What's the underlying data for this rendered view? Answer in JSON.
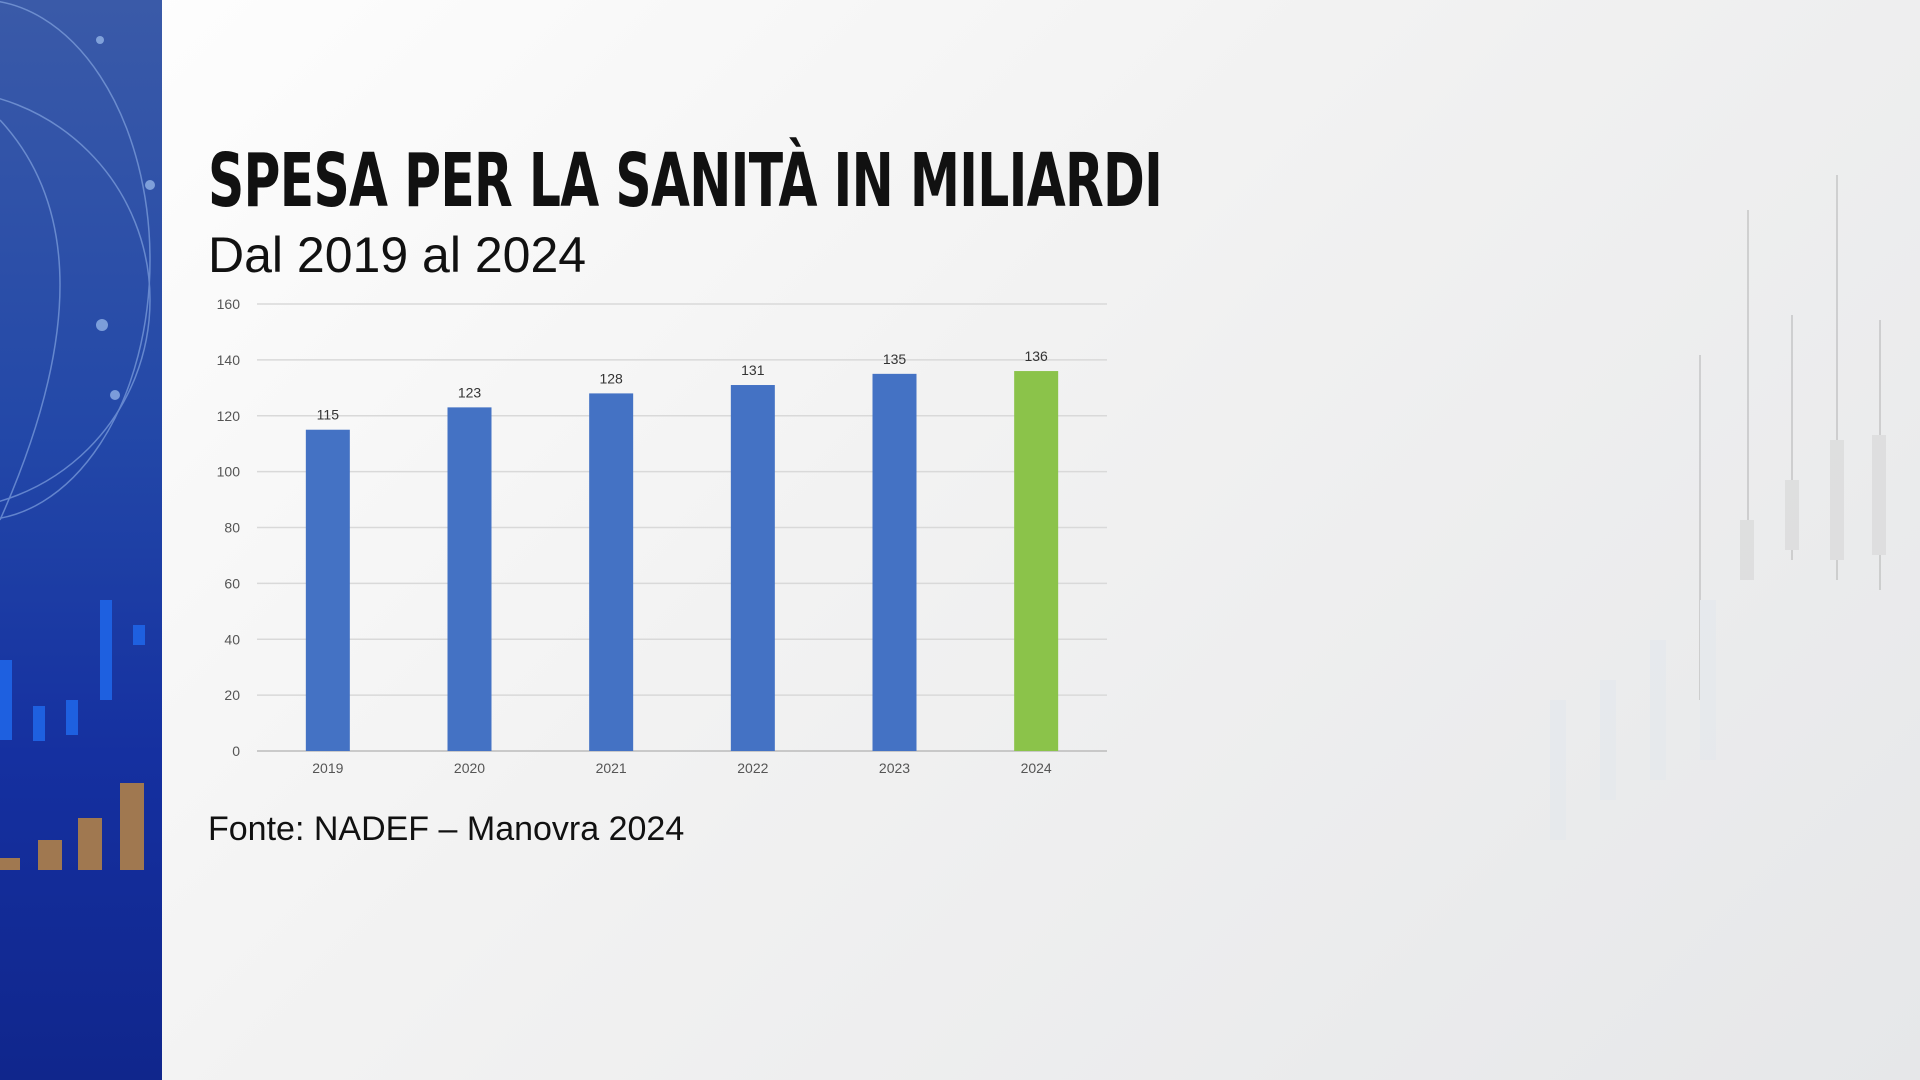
{
  "header": {
    "title": "SPESA PER LA SANITÀ IN MILIARDI",
    "subtitle": "Dal 2019 al 2024"
  },
  "footer": {
    "source": "Fonte:  NADEF – Manovra 2024"
  },
  "colors": {
    "bar": "#4472c4",
    "highlight": "#8bc34a",
    "sidebar": "#1d3fa6"
  },
  "chart_data": {
    "type": "bar",
    "title": "SPESA PER LA SANITÀ IN MILIARDI",
    "subtitle": "Dal 2019 al 2024",
    "categories": [
      "2019",
      "2020",
      "2021",
      "2022",
      "2023",
      "2024"
    ],
    "values": [
      115,
      123,
      128,
      131,
      135,
      136
    ],
    "data_labels": [
      "115",
      "123",
      "128",
      "131",
      "135",
      "136"
    ],
    "highlighted_category": "2024",
    "ylim": [
      0,
      160
    ],
    "yticks": [
      "0",
      "20",
      "40",
      "60",
      "80",
      "100",
      "120",
      "140",
      "160"
    ],
    "grid": true,
    "xlabel": "",
    "ylabel": ""
  }
}
